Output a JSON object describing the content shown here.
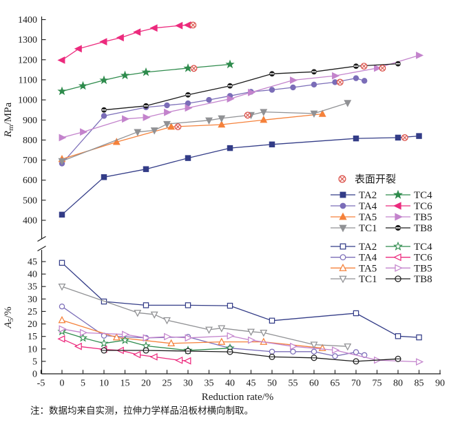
{
  "chart_data": {
    "type": "line",
    "xlabel": "Reduction rate/%",
    "x_range": [
      -5,
      90
    ],
    "x_ticks": [
      -5,
      0,
      5,
      10,
      15,
      20,
      25,
      30,
      35,
      40,
      45,
      50,
      55,
      60,
      65,
      70,
      75,
      80,
      85,
      90
    ],
    "note": "注：数据均来自实测，拉伸力学样品沿板材横向制取。",
    "crack": {
      "label": "表面开裂",
      "color": "#d94b44",
      "points": [
        {
          "x": 31.2,
          "y": 1373
        },
        {
          "x": 31.4,
          "y": 1157
        },
        {
          "x": 27.6,
          "y": 866
        },
        {
          "x": 44.2,
          "y": 924
        },
        {
          "x": 66.2,
          "y": 1088
        },
        {
          "x": 71.9,
          "y": 1168
        },
        {
          "x": 76.3,
          "y": 1158
        },
        {
          "x": 81.6,
          "y": 812
        }
      ]
    },
    "series_styles": [
      {
        "name": "TA2",
        "color": "#333c87",
        "marker": "square"
      },
      {
        "name": "TA4",
        "color": "#7b6db8",
        "marker": "circle"
      },
      {
        "name": "TA5",
        "color": "#f5813a",
        "marker": "triangle-up"
      },
      {
        "name": "TC1",
        "color": "#909194",
        "marker": "triangle-down"
      },
      {
        "name": "TC4",
        "color": "#2e8b4c",
        "marker": "star"
      },
      {
        "name": "TC6",
        "color": "#ec2a7d",
        "marker": "triangle-left"
      },
      {
        "name": "TB5",
        "color": "#c383cc",
        "marker": "triangle-right"
      },
      {
        "name": "TB8",
        "color": "#1c1c1c",
        "marker": "circle-hline"
      }
    ],
    "legend": {
      "columns": [
        [
          "TA2",
          "TA4",
          "TA5",
          "TC1"
        ],
        [
          "TC4",
          "TC6",
          "TB5",
          "TB8"
        ]
      ]
    },
    "subplots": [
      {
        "id": "top",
        "ylabel": {
          "main": "R",
          "sub": "m",
          "suffix": "/MPa"
        },
        "y_range": [
          400,
          1400
        ],
        "y_ticks": [
          400,
          500,
          600,
          700,
          800,
          900,
          1000,
          1100,
          1200,
          1300,
          1400
        ],
        "markers_filled": true,
        "series": [
          {
            "name": "TA2",
            "x": [
              0,
              10,
              20,
              30,
              40,
              50,
              70,
              80,
              85
            ],
            "y": [
              428,
              615,
              655,
              710,
              760,
              778,
              808,
              812,
              820
            ]
          },
          {
            "name": "TA4",
            "x": [
              0,
              10,
              20,
              25,
              30,
              35,
              40,
              45,
              50,
              55,
              60,
              65,
              70,
              72
            ],
            "y": [
              683,
              920,
              963,
              973,
              983,
              1000,
              1020,
              1040,
              1050,
              1062,
              1076,
              1088,
              1108,
              1095
            ]
          },
          {
            "name": "TA5",
            "x": [
              0,
              13,
              26,
              38,
              48,
              62
            ],
            "y": [
              705,
              790,
              866,
              877,
              900,
              930
            ]
          },
          {
            "name": "TC1",
            "x": [
              0,
              18,
              22,
              25,
              35,
              38,
              45,
              48,
              60,
              68
            ],
            "y": [
              695,
              840,
              848,
              880,
              898,
              908,
              925,
              940,
              932,
              985
            ]
          },
          {
            "name": "TC4",
            "x": [
              0,
              5,
              10,
              15,
              20,
              30,
              40
            ],
            "y": [
              1043,
              1070,
              1098,
              1122,
              1138,
              1158,
              1177
            ]
          },
          {
            "name": "TC6",
            "x": [
              0,
              4,
              10,
              14,
              18,
              22,
              28,
              30
            ],
            "y": [
              1198,
              1255,
              1290,
              1310,
              1338,
              1358,
              1370,
              1373
            ]
          },
          {
            "name": "TB5",
            "x": [
              0,
              5,
              15,
              20,
              25,
              30,
              40,
              45,
              55,
              65,
              75,
              85
            ],
            "y": [
              812,
              840,
              905,
              913,
              938,
              960,
              1005,
              1037,
              1098,
              1120,
              1158,
              1222
            ]
          },
          {
            "name": "TB8",
            "x": [
              10,
              20,
              30,
              40,
              50,
              60,
              70,
              80
            ],
            "y": [
              950,
              970,
              1025,
              1070,
              1130,
              1140,
              1168,
              1180
            ]
          }
        ]
      },
      {
        "id": "bottom",
        "ylabel": {
          "main": "A",
          "sub": "5",
          "suffix": "/%"
        },
        "y_range": [
          0,
          45
        ],
        "y_ticks": [
          0,
          5,
          10,
          15,
          20,
          25,
          30,
          35,
          40,
          45
        ],
        "markers_filled": false,
        "series": [
          {
            "name": "TA2",
            "x": [
              0,
              10,
              20,
              30,
              40,
              50,
              70,
              80,
              85
            ],
            "y": [
              44.5,
              29,
              27.5,
              27.5,
              27.3,
              21.3,
              24.3,
              15.1,
              14.6
            ]
          },
          {
            "name": "TA4",
            "x": [
              0,
              10,
              20,
              30,
              40,
              50,
              55,
              60,
              65,
              70,
              72
            ],
            "y": [
              27,
              15.3,
              14.4,
              14.8,
              10.3,
              8.9,
              8.9,
              8.9,
              7.1,
              8.7,
              7.5
            ]
          },
          {
            "name": "TA5",
            "x": [
              0,
              13,
              26,
              38,
              48,
              62
            ],
            "y": [
              21.5,
              14.6,
              12.2,
              12.8,
              12.8,
              10.3
            ]
          },
          {
            "name": "TC1",
            "x": [
              0,
              18,
              22,
              25,
              35,
              38,
              45,
              48,
              60,
              68
            ],
            "y": [
              35,
              24.5,
              23.8,
              21.5,
              17.7,
              18.3,
              16.9,
              16.5,
              11.7,
              11
            ]
          },
          {
            "name": "TC4",
            "x": [
              0,
              5,
              10,
              15,
              20,
              30,
              40
            ],
            "y": [
              17,
              14.4,
              12.2,
              13.5,
              11.2,
              9.4,
              10.3
            ]
          },
          {
            "name": "TC6",
            "x": [
              0,
              4,
              10,
              14,
              18,
              22,
              28,
              30
            ],
            "y": [
              14,
              11,
              9.8,
              9.4,
              7.7,
              6.8,
              5.4,
              5.2
            ]
          },
          {
            "name": "TB5",
            "x": [
              0,
              5,
              15,
              20,
              25,
              30,
              40,
              45,
              55,
              65,
              75,
              85
            ],
            "y": [
              18,
              16.5,
              15.8,
              14.4,
              14.9,
              14.4,
              15.2,
              13.5,
              11,
              9.5,
              5.5,
              4.8
            ]
          },
          {
            "name": "TB8",
            "x": [
              10,
              20,
              30,
              40,
              50,
              60,
              70,
              80
            ],
            "y": [
              9.4,
              9.4,
              9.1,
              8.8,
              6.8,
              6.4,
              5,
              6
            ]
          }
        ]
      }
    ]
  }
}
